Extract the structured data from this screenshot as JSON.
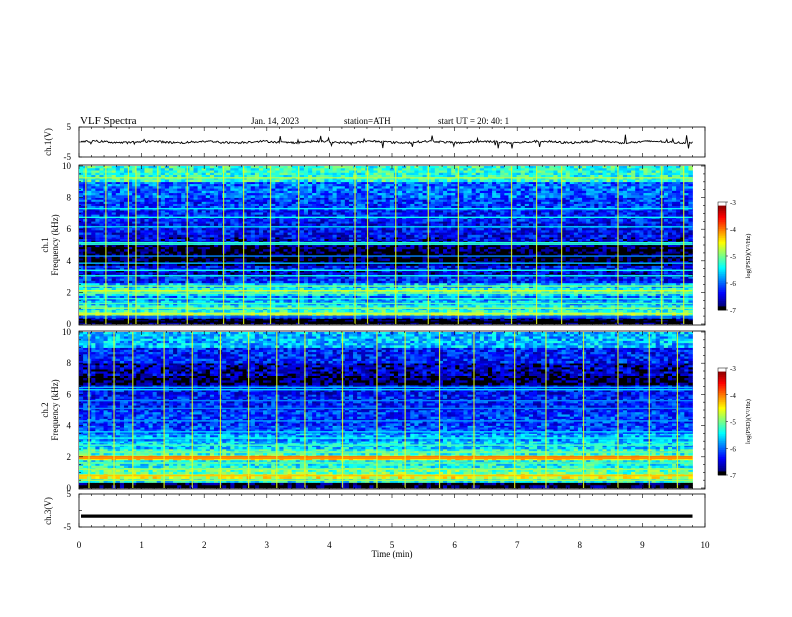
{
  "header": {
    "title": "VLF Spectra",
    "date": "Jan. 14, 2023",
    "station": "station=ATH",
    "start": "start UT = 20: 40: 1"
  },
  "chart_data": [
    {
      "type": "line",
      "panel": "ch1-waveform",
      "ylabel": "ch.1(V)",
      "ylim": [
        -5,
        5
      ],
      "ytick_labels": [
        "5",
        "-5"
      ],
      "xlim": [
        0,
        10
      ],
      "series": [
        {
          "baseline": 0,
          "amplitude_typical": 0.5,
          "spikes_max": 1.7,
          "x_end": 9.8
        }
      ]
    },
    {
      "type": "heatmap",
      "panel": "ch1-spectrogram",
      "ylabel": "ch.1\nFrequency (kHz)",
      "ylabel_line1": "ch.1",
      "ylabel_line2": "Frequency (kHz)",
      "ylim": [
        0,
        10
      ],
      "ytick_labels": [
        "0",
        "2",
        "4",
        "6",
        "8",
        "10"
      ],
      "xlim": [
        0,
        10
      ],
      "x_end": 9.8,
      "colorbar": {
        "label": "log(PSD)(V²/Hz)",
        "range": [
          -7,
          -3
        ],
        "tick_labels": [
          "-3",
          "-4",
          "-5",
          "-6",
          "-7"
        ]
      },
      "rows_kHz": [
        [
          0.0,
          0.35,
          -7.0
        ],
        [
          0.35,
          0.55,
          -6.2
        ],
        [
          0.55,
          0.75,
          -4.9
        ],
        [
          0.75,
          0.9,
          -5.3
        ],
        [
          0.9,
          1.2,
          -5.4
        ],
        [
          1.2,
          1.5,
          -5.7
        ],
        [
          1.5,
          1.8,
          -5.9
        ],
        [
          1.8,
          2.0,
          -5.5
        ],
        [
          2.0,
          2.3,
          -5.3
        ],
        [
          2.3,
          2.6,
          -5.7
        ],
        [
          2.6,
          3.0,
          -6.3
        ],
        [
          3.0,
          3.4,
          -6.5
        ],
        [
          3.4,
          3.7,
          -6.4
        ],
        [
          3.7,
          4.0,
          -6.9
        ],
        [
          4.0,
          4.6,
          -7.0
        ],
        [
          4.6,
          5.0,
          -6.9
        ],
        [
          5.0,
          5.5,
          -6.5
        ],
        [
          5.5,
          6.5,
          -6.4
        ],
        [
          6.5,
          7.2,
          -6.3
        ],
        [
          7.2,
          8.0,
          -6.2
        ],
        [
          8.0,
          9.0,
          -6.0
        ],
        [
          9.0,
          10.0,
          -5.3
        ]
      ],
      "lines_kHz": [
        [
          0.12,
          -7.0
        ],
        [
          0.45,
          -6.0
        ],
        [
          0.65,
          -4.7
        ],
        [
          1.0,
          -4.9
        ],
        [
          1.3,
          -5.2
        ],
        [
          1.6,
          -5.3
        ],
        [
          1.95,
          -5.0
        ],
        [
          2.1,
          -4.6
        ],
        [
          2.4,
          -5.0
        ],
        [
          3.05,
          -5.4
        ],
        [
          3.4,
          -5.4
        ],
        [
          3.85,
          -5.7
        ],
        [
          4.3,
          -5.9
        ],
        [
          5.05,
          -5.3
        ],
        [
          5.15,
          -5.3
        ],
        [
          6.15,
          -5.6
        ],
        [
          6.75,
          -5.4
        ],
        [
          7.3,
          -5.5
        ],
        [
          9.25,
          -4.8
        ]
      ],
      "events_min": [
        0.1,
        0.42,
        0.78,
        0.9,
        1.25,
        1.72,
        2.3,
        2.62,
        3.05,
        3.5,
        4.4,
        4.6,
        5.05,
        5.57,
        6.05,
        6.9,
        7.3,
        7.7,
        8.6,
        9.3,
        9.65
      ]
    },
    {
      "type": "heatmap",
      "panel": "ch2-spectrogram",
      "ylabel": "ch.2\nFrequency (kHz)",
      "ylabel_line1": "ch.2",
      "ylabel_line2": "Frequency (kHz)",
      "ylim": [
        0,
        10
      ],
      "ytick_labels": [
        "0",
        "2",
        "4",
        "6",
        "8",
        "10"
      ],
      "xlim": [
        0,
        10
      ],
      "x_end": 9.8,
      "colorbar": {
        "label": "log(PSD)(V²/Hz)",
        "range": [
          -7,
          -3
        ],
        "tick_labels": [
          "-3",
          "-4",
          "-5",
          "-6",
          "-7"
        ]
      },
      "rows_kHz": [
        [
          0.0,
          0.35,
          -7.0
        ],
        [
          0.35,
          0.6,
          -5.4
        ],
        [
          0.6,
          0.9,
          -4.6
        ],
        [
          0.9,
          1.3,
          -5.1
        ],
        [
          1.3,
          1.8,
          -5.4
        ],
        [
          1.8,
          2.1,
          -4.5
        ],
        [
          2.1,
          2.5,
          -5.3
        ],
        [
          2.5,
          3.0,
          -5.6
        ],
        [
          3.0,
          3.5,
          -5.8
        ],
        [
          3.5,
          4.0,
          -6.1
        ],
        [
          4.0,
          5.0,
          -6.2
        ],
        [
          5.0,
          6.0,
          -6.3
        ],
        [
          6.0,
          6.6,
          -6.4
        ],
        [
          6.6,
          7.2,
          -6.9
        ],
        [
          7.2,
          8.0,
          -6.6
        ],
        [
          8.0,
          9.0,
          -6.3
        ],
        [
          9.0,
          10.0,
          -5.7
        ]
      ],
      "lines_kHz": [
        [
          0.5,
          -4.8
        ],
        [
          0.8,
          -4.3
        ],
        [
          1.2,
          -4.9
        ],
        [
          1.6,
          -5.1
        ],
        [
          1.9,
          -4.1
        ],
        [
          2.0,
          -4.0
        ],
        [
          2.3,
          -5.0
        ],
        [
          2.75,
          -5.2
        ],
        [
          3.2,
          -5.4
        ],
        [
          3.6,
          -5.6
        ],
        [
          4.3,
          -5.8
        ],
        [
          5.1,
          -5.9
        ],
        [
          5.6,
          -5.9
        ],
        [
          6.3,
          -5.6
        ],
        [
          6.45,
          -5.7
        ]
      ],
      "events_min": [
        0.15,
        0.55,
        0.85,
        1.35,
        1.8,
        2.25,
        2.7,
        3.15,
        3.6,
        4.2,
        4.75,
        5.2,
        5.75,
        6.3,
        6.95,
        7.45,
        8.05,
        8.6,
        9.1,
        9.55
      ]
    },
    {
      "type": "line",
      "panel": "ch3-waveform",
      "ylabel": "ch.3(V)",
      "ylim": [
        -5,
        5
      ],
      "ytick_labels": [
        "5",
        "-5"
      ],
      "xlim": [
        0,
        10
      ],
      "series": [
        {
          "baseline": -1.8,
          "amplitude_typical": 0.0,
          "x_end": 9.8
        }
      ]
    }
  ],
  "xaxis": {
    "label": "Time (min)",
    "tick_labels": [
      "0",
      "1",
      "2",
      "3",
      "4",
      "5",
      "6",
      "7",
      "8",
      "9",
      "10"
    ],
    "range": [
      0,
      10
    ]
  },
  "colorbar_label": "log(PSD)(V²/Hz)",
  "colorbar_ticks": [
    "-3",
    "-4",
    "-5",
    "-6",
    "-7"
  ]
}
